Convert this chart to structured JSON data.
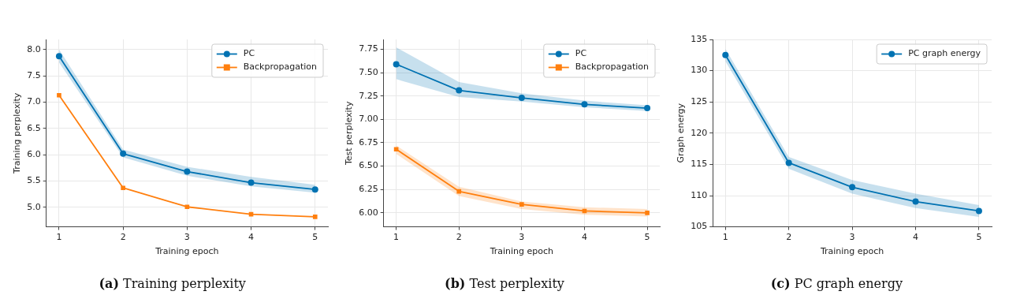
{
  "chart_data": [
    {
      "type": "line",
      "xlabel": "Training epoch",
      "ylabel": "Training perplexity",
      "annotations": [
        "(a) Training perplexity"
      ],
      "x": [
        1,
        2,
        3,
        4,
        5
      ],
      "xlim": [
        0.8,
        5.2
      ],
      "xticks": [
        1,
        2,
        3,
        4,
        5
      ],
      "ylim": [
        4.63,
        8.19
      ],
      "yticks": [
        {
          "value": 5,
          "label": "5.0"
        },
        5.5,
        {
          "value": 6,
          "label": "6.0"
        },
        6.5,
        {
          "value": 7,
          "label": "7.0"
        },
        7.5,
        {
          "value": 8,
          "label": "8.0"
        }
      ],
      "grid": true,
      "legend": "top right",
      "line_style": "solid",
      "series": [
        {
          "name": "PC",
          "color": "#0072b2",
          "marker": "circle",
          "values": [
            7.87,
            6.02,
            5.68,
            5.47,
            5.34
          ],
          "lower": [
            7.75,
            5.95,
            5.6,
            5.4,
            5.28
          ],
          "upper": [
            8.0,
            6.1,
            5.77,
            5.58,
            5.43
          ]
        },
        {
          "name": "Backpropagation",
          "color": "#ff7f0e",
          "marker": "square",
          "values": [
            7.13,
            5.37,
            5.01,
            4.87,
            4.82
          ]
        }
      ]
    },
    {
      "type": "line",
      "xlabel": "Training epoch",
      "ylabel": "Test perplexity",
      "annotations": [
        "(b) Test perplexity"
      ],
      "x": [
        1,
        2,
        3,
        4,
        5
      ],
      "xlim": [
        0.8,
        5.2
      ],
      "xticks": [
        1,
        2,
        3,
        4,
        5
      ],
      "ylim": [
        5.85,
        7.855
      ],
      "yticks": [
        {
          "value": 6,
          "label": "6.00"
        },
        6.25,
        {
          "value": 6.5,
          "label": "6.50"
        },
        6.75,
        {
          "value": 7,
          "label": "7.00"
        },
        7.25,
        {
          "value": 7.5,
          "label": "7.50"
        },
        7.75
      ],
      "grid": true,
      "legend": "top right",
      "line_style": "solid",
      "series": [
        {
          "name": "PC",
          "color": "#0072b2",
          "marker": "circle",
          "values": [
            7.59,
            7.31,
            7.23,
            7.16,
            7.12
          ],
          "lower": [
            7.43,
            7.24,
            7.19,
            7.13,
            7.09
          ],
          "upper": [
            7.77,
            7.4,
            7.28,
            7.2,
            7.15
          ]
        },
        {
          "name": "Backpropagation",
          "color": "#ff7f0e",
          "marker": "square",
          "values": [
            6.68,
            6.23,
            6.09,
            6.02,
            6.0
          ],
          "lower": [
            6.63,
            6.18,
            6.04,
            5.98,
            5.96
          ],
          "upper": [
            6.72,
            6.28,
            6.12,
            6.06,
            6.04
          ]
        }
      ]
    },
    {
      "type": "line",
      "xlabel": "Training epoch",
      "ylabel": "Graph energy",
      "annotations": [
        "(c) PC graph energy"
      ],
      "x": [
        1,
        2,
        3,
        4,
        5
      ],
      "xlim": [
        0.8,
        5.2
      ],
      "xticks": [
        1,
        2,
        3,
        4,
        5
      ],
      "ylim": [
        105,
        135
      ],
      "yticks": [
        105,
        110,
        115,
        120,
        125,
        130,
        135
      ],
      "grid": true,
      "legend": "top right",
      "line_style": "solid",
      "series": [
        {
          "name": "PC graph energy",
          "color": "#0072b2",
          "marker": "circle",
          "values": [
            132.5,
            115.25,
            111.35,
            109.05,
            107.55
          ],
          "lower": [
            131.5,
            114.3,
            110.3,
            108,
            106.6
          ],
          "upper": [
            133.5,
            116.2,
            112.5,
            110.3,
            108.5
          ]
        }
      ]
    }
  ]
}
